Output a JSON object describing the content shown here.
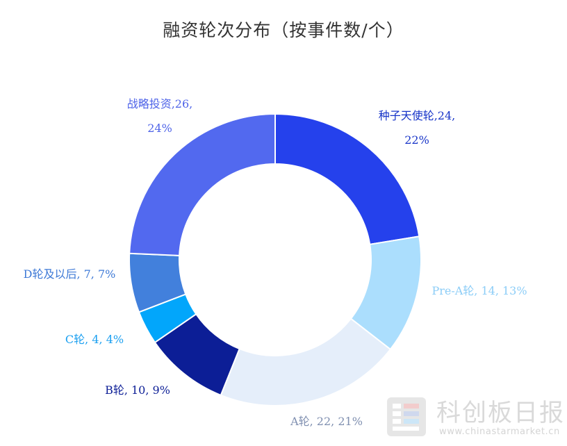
{
  "chart_data": {
    "type": "pie",
    "title": "融资轮次分布（按事件数/个）",
    "donut": true,
    "legend": "none",
    "slices": [
      {
        "label": "种子天使轮",
        "value": 24,
        "percent": "22%",
        "color": "#2541EC",
        "label_color": "#1633C8"
      },
      {
        "label": "Pre-A轮",
        "value": 14,
        "percent": "13%",
        "color": "#ABDEFD",
        "label_color": "#8CCDF7"
      },
      {
        "label": "A轮",
        "value": 22,
        "percent": "21%",
        "color": "#E5EEFA",
        "label_color": "#7F8FB0"
      },
      {
        "label": "B轮",
        "value": 10,
        "percent": "9%",
        "color": "#0C1E96",
        "label_color": "#0C1E96"
      },
      {
        "label": "C轮",
        "value": 4,
        "percent": "4%",
        "color": "#02A6FB",
        "label_color": "#1A9FF0"
      },
      {
        "label": "D轮及以后",
        "value": 7,
        "percent": "7%",
        "color": "#4280DC",
        "label_color": "#3C78D6"
      },
      {
        "label": "战略投资",
        "value": 26,
        "percent": "24%",
        "color": "#5269EF",
        "label_color": "#4E63E8"
      }
    ],
    "data_labels": [
      {
        "line1": "种子天使轮,24,",
        "line2": "22%"
      },
      {
        "line1": "Pre-A轮, 14, 13%",
        "line2": ""
      },
      {
        "line1": "A轮, 22, 21%",
        "line2": ""
      },
      {
        "line1": "B轮, 10, 9%",
        "line2": ""
      },
      {
        "line1": "C轮, 4, 4%",
        "line2": ""
      },
      {
        "line1": "D轮及以后, 7, 7%",
        "line2": ""
      },
      {
        "line1": "战略投资,26,",
        "line2": "24%"
      }
    ]
  },
  "watermark": {
    "text": "科创板日报",
    "url": "www.chinastarmarket.cn"
  }
}
